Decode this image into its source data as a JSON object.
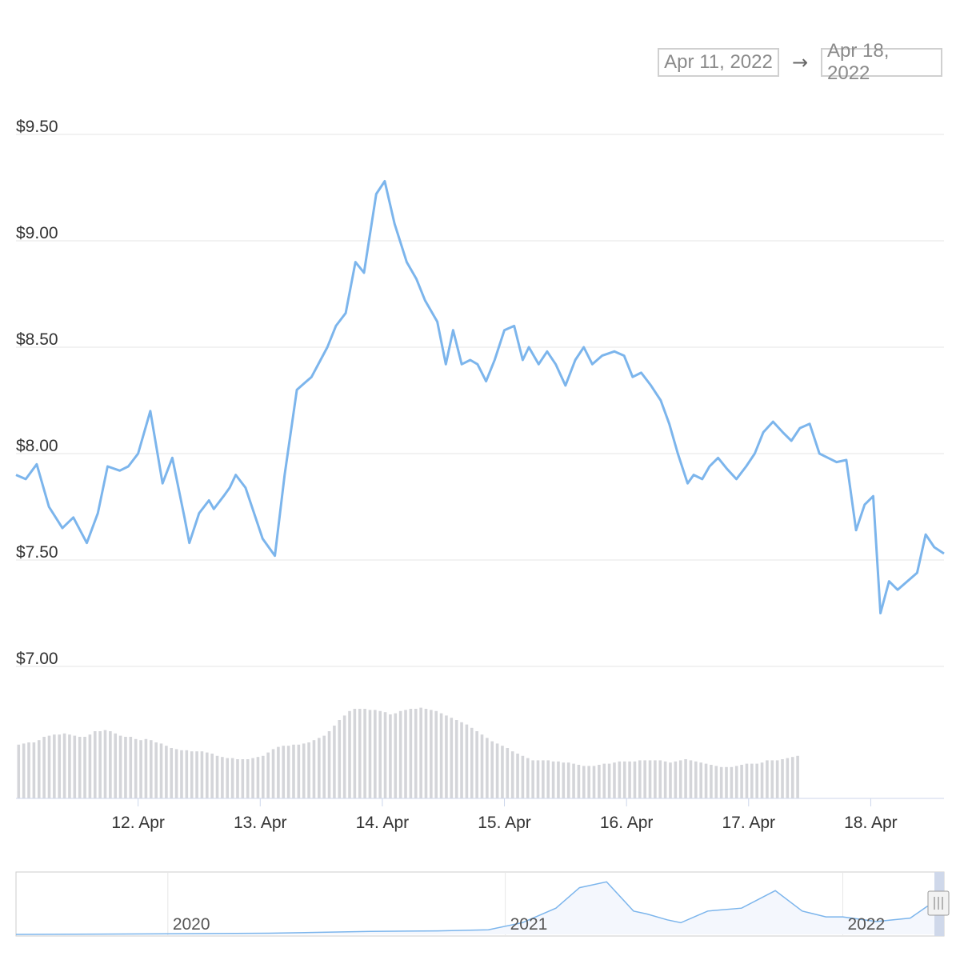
{
  "range_selector": {
    "from_value": "Apr 11, 2022",
    "arrow": "→",
    "to_value": "Apr 18, 2022"
  },
  "navigator": {
    "year_labels": [
      "2020",
      "2021",
      "2022"
    ]
  },
  "colors": {
    "line": "#7cb5ec",
    "volume": "#d4d5d9",
    "grid": "#e6e6e6",
    "navigator_mask": "#f4f7fd"
  },
  "chart_data": {
    "type": "line",
    "title": "",
    "xlabel": "",
    "ylabel": "",
    "ylim": [
      7.0,
      9.5
    ],
    "y_ticks": [
      "$9.50",
      "$9.00",
      "$8.50",
      "$8.00",
      "$7.50",
      "$7.00"
    ],
    "y_tick_values": [
      9.5,
      9.0,
      8.5,
      8.0,
      7.5,
      7.0
    ],
    "x_ticks": [
      "12. Apr",
      "13. Apr",
      "14. Apr",
      "15. Apr",
      "16. Apr",
      "17. Apr",
      "18. Apr"
    ],
    "x_tick_values": [
      1,
      2,
      3,
      4,
      5,
      6,
      7
    ],
    "xlim": [
      0.0,
      7.6
    ],
    "x_unit": "days after Apr 11, 2022",
    "series": [
      {
        "x": [
          0.0,
          0.08,
          0.17,
          0.27,
          0.38,
          0.47,
          0.58,
          0.67,
          0.75,
          0.85,
          0.92,
          1.0,
          1.1,
          1.2,
          1.28,
          1.38,
          1.42,
          1.5,
          1.58,
          1.62,
          1.7,
          1.75,
          1.8,
          1.88,
          1.95,
          2.02,
          2.12,
          2.2,
          2.3,
          2.42,
          2.55,
          2.62,
          2.7,
          2.78,
          2.85,
          2.95,
          3.02,
          3.1,
          3.2,
          3.28,
          3.35,
          3.45,
          3.52,
          3.58,
          3.65,
          3.72,
          3.78,
          3.85,
          3.92,
          4.0,
          4.08,
          4.15,
          4.2,
          4.28,
          4.35,
          4.42,
          4.5,
          4.58,
          4.65,
          4.72,
          4.8,
          4.9,
          4.98,
          5.05,
          5.12,
          5.2,
          5.28,
          5.35,
          5.42,
          5.5,
          5.55,
          5.62,
          5.68,
          5.75,
          5.82,
          5.9,
          5.98,
          6.05,
          6.12,
          6.2,
          6.28,
          6.35,
          6.42,
          6.5,
          6.58,
          6.65,
          6.72,
          6.8,
          6.88,
          6.95,
          7.02,
          7.08,
          7.15,
          7.22,
          7.3,
          7.38,
          7.45,
          7.52,
          7.6
        ],
        "values": [
          7.9,
          7.88,
          7.95,
          7.75,
          7.65,
          7.7,
          7.58,
          7.72,
          7.94,
          7.92,
          7.94,
          8.0,
          8.2,
          7.86,
          7.98,
          7.7,
          7.58,
          7.72,
          7.78,
          7.74,
          7.8,
          7.84,
          7.9,
          7.84,
          7.72,
          7.6,
          7.52,
          7.9,
          8.3,
          8.36,
          8.5,
          8.6,
          8.66,
          8.9,
          8.85,
          9.22,
          9.28,
          9.08,
          8.9,
          8.82,
          8.72,
          8.62,
          8.42,
          8.58,
          8.42,
          8.44,
          8.42,
          8.34,
          8.44,
          8.58,
          8.6,
          8.44,
          8.5,
          8.42,
          8.48,
          8.42,
          8.32,
          8.44,
          8.5,
          8.42,
          8.46,
          8.48,
          8.46,
          8.36,
          8.38,
          8.32,
          8.25,
          8.14,
          8.0,
          7.86,
          7.9,
          7.88,
          7.94,
          7.98,
          7.93,
          7.88,
          7.94,
          8.0,
          8.1,
          8.15,
          8.1,
          8.06,
          8.12,
          8.14,
          8.0,
          7.98,
          7.96,
          7.97,
          7.64,
          7.76,
          7.8,
          7.25,
          7.4,
          7.36,
          7.4,
          7.44,
          7.62,
          7.56,
          7.53
        ]
      }
    ],
    "volume": {
      "description_ylim": [
        0,
        1
      ],
      "x_start": 0.0,
      "x_step": 0.0417,
      "values": [
        0.48,
        0.49,
        0.5,
        0.5,
        0.52,
        0.55,
        0.56,
        0.57,
        0.57,
        0.58,
        0.57,
        0.56,
        0.55,
        0.55,
        0.57,
        0.6,
        0.6,
        0.61,
        0.6,
        0.58,
        0.56,
        0.55,
        0.55,
        0.53,
        0.52,
        0.53,
        0.52,
        0.5,
        0.49,
        0.47,
        0.45,
        0.44,
        0.43,
        0.43,
        0.42,
        0.42,
        0.42,
        0.41,
        0.4,
        0.38,
        0.37,
        0.36,
        0.36,
        0.35,
        0.35,
        0.35,
        0.36,
        0.37,
        0.38,
        0.41,
        0.44,
        0.46,
        0.47,
        0.47,
        0.48,
        0.48,
        0.49,
        0.5,
        0.52,
        0.54,
        0.56,
        0.6,
        0.65,
        0.7,
        0.74,
        0.78,
        0.8,
        0.8,
        0.8,
        0.79,
        0.79,
        0.78,
        0.77,
        0.75,
        0.76,
        0.78,
        0.79,
        0.8,
        0.8,
        0.81,
        0.8,
        0.79,
        0.78,
        0.76,
        0.74,
        0.72,
        0.7,
        0.68,
        0.66,
        0.63,
        0.6,
        0.57,
        0.54,
        0.51,
        0.49,
        0.47,
        0.45,
        0.42,
        0.4,
        0.38,
        0.36,
        0.34,
        0.34,
        0.34,
        0.34,
        0.33,
        0.33,
        0.32,
        0.32,
        0.31,
        0.3,
        0.29,
        0.29,
        0.29,
        0.3,
        0.31,
        0.31,
        0.32,
        0.33,
        0.33,
        0.33,
        0.33,
        0.34,
        0.34,
        0.34,
        0.34,
        0.34,
        0.33,
        0.32,
        0.33,
        0.34,
        0.35,
        0.34,
        0.33,
        0.32,
        0.31,
        0.3,
        0.29,
        0.28,
        0.28,
        0.28,
        0.29,
        0.3,
        0.31,
        0.31,
        0.31,
        0.32,
        0.34,
        0.34,
        0.34,
        0.35,
        0.36,
        0.37,
        0.38
      ]
    },
    "navigator_series": {
      "x_years": [
        2019.55,
        2020.0,
        2020.3,
        2020.6,
        2020.8,
        2020.95,
        2021.05,
        2021.15,
        2021.22,
        2021.3,
        2021.38,
        2021.42,
        2021.48,
        2021.52,
        2021.6,
        2021.7,
        2021.8,
        2021.88,
        2021.95,
        2022.0,
        2022.1,
        2022.2,
        2022.25,
        2022.3
      ],
      "relative_values": [
        0.0,
        0.01,
        0.02,
        0.05,
        0.06,
        0.08,
        0.2,
        0.45,
        0.8,
        0.9,
        0.4,
        0.35,
        0.25,
        0.2,
        0.4,
        0.45,
        0.75,
        0.4,
        0.3,
        0.3,
        0.22,
        0.28,
        0.48,
        0.5
      ]
    }
  }
}
